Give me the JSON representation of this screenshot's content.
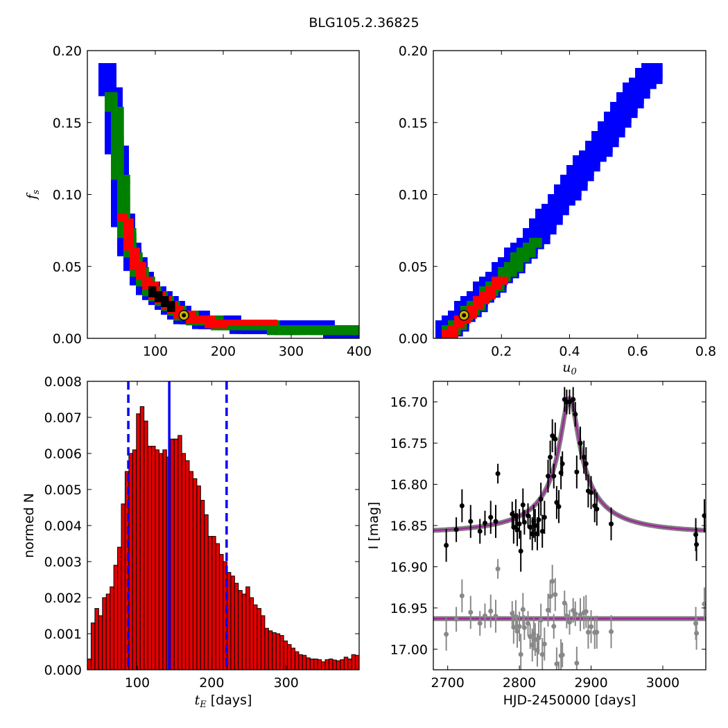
{
  "title": "BLG105.2.36825",
  "colors": {
    "level1": "#0000ff",
    "level2": "#008000",
    "level3": "#ff0000",
    "level4": "#000000",
    "best_fit_marker": "#c8b400",
    "hist_bar": "#e00000",
    "model_curve": "#a0289c",
    "model_band": "#808080",
    "data": "#000000",
    "residual_data": "#888888",
    "median_line": "#0000ff"
  },
  "chart_data": [
    {
      "id": "fs_vs_tE",
      "type": "heatmap",
      "xlabel": "",
      "ylabel": "f_s",
      "xlim": [
        0,
        400
      ],
      "ylim": [
        0,
        0.2
      ],
      "xticks": [
        "100",
        "200",
        "300",
        "400"
      ],
      "yticks": [
        "0.00",
        "0.05",
        "0.10",
        "0.15",
        "0.20"
      ],
      "best_fit": [
        142,
        0.016
      ],
      "ridge": [
        [
          32,
          0.187
        ],
        [
          38,
          0.17
        ],
        [
          45,
          0.14
        ],
        [
          50,
          0.11
        ],
        [
          55,
          0.085
        ],
        [
          60,
          0.07
        ],
        [
          70,
          0.055
        ],
        [
          80,
          0.045
        ],
        [
          95,
          0.035
        ],
        [
          110,
          0.028
        ],
        [
          125,
          0.022
        ],
        [
          140,
          0.018
        ],
        [
          165,
          0.014
        ],
        [
          200,
          0.011
        ],
        [
          250,
          0.009
        ],
        [
          300,
          0.008
        ],
        [
          400,
          0.006
        ]
      ]
    },
    {
      "id": "fs_vs_u0",
      "type": "heatmap",
      "xlabel": "u0",
      "ylabel": "",
      "xlim": [
        0,
        0.8
      ],
      "ylim": [
        0,
        0.2
      ],
      "xticks": [
        "0.2",
        "0.4",
        "0.6",
        "0.8"
      ],
      "yticks": [
        "0.00",
        "0.05",
        "0.10",
        "0.15",
        "0.20"
      ],
      "best_fit": [
        0.09,
        0.016
      ],
      "ridge": [
        [
          0.045,
          0.005
        ],
        [
          0.09,
          0.015
        ],
        [
          0.15,
          0.03
        ],
        [
          0.2,
          0.042
        ],
        [
          0.25,
          0.055
        ],
        [
          0.3,
          0.068
        ],
        [
          0.35,
          0.085
        ],
        [
          0.4,
          0.1
        ],
        [
          0.45,
          0.118
        ],
        [
          0.5,
          0.135
        ],
        [
          0.55,
          0.152
        ],
        [
          0.6,
          0.17
        ],
        [
          0.65,
          0.186
        ]
      ]
    },
    {
      "id": "tE_histogram",
      "type": "bar",
      "xlabel": "tE [days]",
      "ylabel": "normed N",
      "xlim": [
        33,
        398
      ],
      "ylim": [
        0,
        0.008
      ],
      "xticks": [
        "100",
        "200",
        "300"
      ],
      "yticks": [
        "0.000",
        "0.001",
        "0.002",
        "0.003",
        "0.004",
        "0.005",
        "0.006",
        "0.007",
        "0.008"
      ],
      "bin_width": 5.07,
      "values": [
        0.0003,
        0.0013,
        0.0017,
        0.0015,
        0.002,
        0.0021,
        0.0023,
        0.0029,
        0.0034,
        0.0046,
        0.0055,
        0.006,
        0.0061,
        0.0071,
        0.0073,
        0.0069,
        0.0062,
        0.0062,
        0.0061,
        0.006,
        0.0061,
        0.0059,
        0.0064,
        0.0064,
        0.0065,
        0.006,
        0.0058,
        0.0055,
        0.0053,
        0.0051,
        0.0047,
        0.0043,
        0.0037,
        0.0037,
        0.0035,
        0.0032,
        0.003,
        0.0027,
        0.0026,
        0.0024,
        0.0022,
        0.0021,
        0.0023,
        0.002,
        0.0018,
        0.0017,
        0.0015,
        0.00115,
        0.00108,
        0.00103,
        0.001,
        0.00095,
        0.0008,
        0.0007,
        0.0006,
        0.0005,
        0.00042,
        0.0004,
        0.00033,
        0.0003,
        0.0003,
        0.00028,
        0.00022,
        0.00028,
        0.0003,
        0.00027,
        0.00025,
        0.00028,
        0.00035,
        0.0003,
        0.00042,
        0.0004
      ],
      "median": 143,
      "interval": [
        88,
        220
      ]
    },
    {
      "id": "light_curve",
      "type": "scatter",
      "xlabel": "HJD-2450000 [days]",
      "ylabel": "I [mag]",
      "xlim": [
        2680,
        3060
      ],
      "ylim": [
        17.025,
        16.675
      ],
      "inverted_y": true,
      "xticks": [
        "2700",
        "2800",
        "2900",
        "3000"
      ],
      "yticks": [
        "16.70",
        "16.75",
        "16.80",
        "16.85",
        "16.90",
        "16.95",
        "17.00"
      ],
      "model": {
        "t0": 2870,
        "tE": 143,
        "u0": 0.09,
        "fs": 0.016,
        "baseline": 16.859
      },
      "residual_offset": 16.963,
      "data": [
        [
          2698,
          16.874,
          0.02
        ],
        [
          2712,
          16.855,
          0.015
        ],
        [
          2720,
          16.826,
          0.02
        ],
        [
          2732,
          16.845,
          0.02
        ],
        [
          2745,
          16.857,
          0.015
        ],
        [
          2752,
          16.847,
          0.015
        ],
        [
          2760,
          16.84,
          0.02
        ],
        [
          2767,
          16.845,
          0.02
        ],
        [
          2770,
          16.787,
          0.012
        ],
        [
          2790,
          16.836,
          0.015
        ],
        [
          2792,
          16.852,
          0.02
        ],
        [
          2795,
          16.838,
          0.02
        ],
        [
          2797,
          16.855,
          0.02
        ],
        [
          2800,
          16.848,
          0.018
        ],
        [
          2802,
          16.881,
          0.025
        ],
        [
          2805,
          16.825,
          0.02
        ],
        [
          2807,
          16.846,
          0.015
        ],
        [
          2812,
          16.838,
          0.015
        ],
        [
          2815,
          16.852,
          0.015
        ],
        [
          2818,
          16.86,
          0.02
        ],
        [
          2820,
          16.845,
          0.02
        ],
        [
          2822,
          16.85,
          0.02
        ],
        [
          2825,
          16.86,
          0.02
        ],
        [
          2827,
          16.843,
          0.02
        ],
        [
          2830,
          16.818,
          0.02
        ],
        [
          2832,
          16.857,
          0.02
        ],
        [
          2835,
          16.84,
          0.02
        ],
        [
          2840,
          16.79,
          0.02
        ],
        [
          2843,
          16.767,
          0.02
        ],
        [
          2846,
          16.741,
          0.02
        ],
        [
          2848,
          16.79,
          0.015
        ],
        [
          2850,
          16.745,
          0.02
        ],
        [
          2852,
          16.822,
          0.02
        ],
        [
          2855,
          16.827,
          0.02
        ],
        [
          2858,
          16.786,
          0.02
        ],
        [
          2860,
          16.775,
          0.015
        ],
        [
          2863,
          16.697,
          0.015
        ],
        [
          2866,
          16.7,
          0.015
        ],
        [
          2870,
          16.7,
          0.015
        ],
        [
          2875,
          16.697,
          0.015
        ],
        [
          2878,
          16.715,
          0.015
        ],
        [
          2880,
          16.785,
          0.02
        ],
        [
          2885,
          16.75,
          0.02
        ],
        [
          2890,
          16.767,
          0.02
        ],
        [
          2893,
          16.775,
          0.02
        ],
        [
          2896,
          16.808,
          0.02
        ],
        [
          2900,
          16.81,
          0.02
        ],
        [
          2905,
          16.826,
          0.02
        ],
        [
          2908,
          16.83,
          0.02
        ],
        [
          2928,
          16.848,
          0.02
        ],
        [
          3046,
          16.861,
          0.02
        ],
        [
          3047,
          16.873,
          0.02
        ],
        [
          3058,
          16.838,
          0.02
        ]
      ]
    }
  ]
}
